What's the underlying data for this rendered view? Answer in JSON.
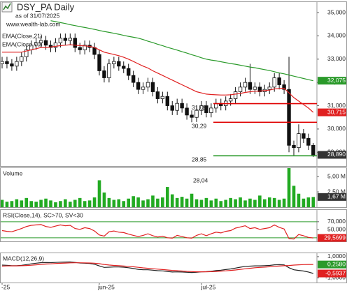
{
  "chart_data": [
    {
      "type": "candlestick",
      "title": "DSY_PA Daily",
      "subtitle": "as of 31/07/2025",
      "annotations": [
        "www.wealth-lab.com"
      ],
      "categories": [
        "-25",
        null,
        null,
        null,
        null,
        null,
        null,
        null,
        null,
        null,
        null,
        null,
        null,
        null,
        null,
        null,
        null,
        null,
        null,
        null,
        "jun-25",
        null,
        null,
        null,
        null,
        null,
        null,
        null,
        null,
        null,
        null,
        null,
        null,
        null,
        null,
        null,
        null,
        null,
        null,
        null,
        null,
        "jul-25",
        null,
        null,
        null,
        null,
        null,
        null,
        null,
        null,
        null,
        null,
        null,
        null,
        null,
        null,
        null,
        null,
        null,
        null,
        null,
        null,
        null,
        null,
        null
      ],
      "open": [
        32.8,
        32.9,
        32.8,
        32.7,
        32.9,
        33.1,
        33.4,
        33.6,
        33.7,
        33.8,
        33.6,
        33.5,
        33.7,
        33.9,
        33.8,
        33.9,
        33.5,
        33.4,
        33.6,
        33.5,
        33.2,
        32.5,
        32.2,
        32.8,
        32.9,
        32.7,
        32.6,
        32.3,
        32.0,
        31.7,
        31.8,
        32.0,
        31.6,
        31.3,
        31.4,
        31.0,
        30.8,
        31.1,
        30.9,
        30.6,
        30.5,
        30.8,
        31.0,
        30.7,
        30.9,
        31.1,
        31.0,
        31.2,
        31.3,
        31.6,
        31.8,
        32.0,
        31.7,
        31.8,
        31.6,
        31.7,
        31.8,
        32.2,
        31.9,
        31.7,
        29.3,
        29.2,
        29.8,
        29.6,
        29.3
      ],
      "high": [
        33.1,
        33.1,
        33.0,
        33.1,
        33.3,
        33.6,
        33.8,
        33.9,
        34.0,
        34.0,
        33.8,
        33.9,
        34.1,
        34.1,
        34.1,
        34.1,
        33.7,
        33.8,
        33.8,
        33.7,
        33.4,
        32.7,
        33.0,
        33.1,
        33.1,
        32.9,
        32.8,
        32.5,
        32.2,
        32.0,
        32.2,
        32.2,
        31.8,
        31.6,
        31.6,
        31.2,
        31.3,
        31.3,
        31.1,
        30.8,
        31.0,
        31.2,
        31.2,
        31.1,
        31.3,
        31.3,
        31.4,
        31.5,
        31.8,
        32.0,
        32.2,
        32.8,
        32.0,
        32.0,
        31.9,
        32.0,
        32.4,
        32.4,
        32.1,
        33.1,
        29.5,
        30.2,
        30.0,
        29.8,
        29.4
      ],
      "low": [
        32.6,
        32.6,
        32.5,
        32.5,
        32.7,
        32.9,
        33.2,
        33.4,
        33.5,
        33.4,
        33.3,
        33.3,
        33.5,
        33.6,
        33.6,
        33.3,
        33.2,
        33.2,
        33.3,
        33.0,
        32.3,
        32.0,
        32.0,
        32.6,
        32.5,
        32.4,
        32.1,
        31.8,
        31.5,
        31.5,
        31.6,
        31.4,
        31.1,
        31.1,
        30.8,
        30.6,
        30.6,
        30.7,
        30.4,
        30.29,
        30.3,
        30.6,
        30.5,
        30.5,
        30.7,
        30.8,
        30.8,
        31.0,
        31.1,
        31.4,
        31.6,
        31.5,
        31.5,
        31.4,
        31.4,
        31.5,
        31.6,
        31.7,
        31.5,
        29.0,
        28.85,
        29.0,
        29.4,
        29.1,
        28.8
      ],
      "close": [
        32.9,
        32.8,
        32.7,
        32.9,
        33.1,
        33.4,
        33.6,
        33.7,
        33.8,
        33.6,
        33.5,
        33.7,
        33.9,
        33.8,
        33.9,
        33.5,
        33.4,
        33.6,
        33.5,
        33.2,
        32.5,
        32.2,
        32.8,
        32.9,
        32.7,
        32.6,
        32.3,
        32.0,
        31.7,
        31.8,
        32.0,
        31.6,
        31.3,
        31.4,
        31.0,
        30.8,
        31.1,
        30.9,
        30.6,
        30.5,
        30.8,
        31.0,
        30.7,
        30.9,
        31.1,
        31.0,
        31.2,
        31.3,
        31.6,
        31.8,
        32.0,
        31.7,
        31.8,
        31.6,
        31.7,
        31.8,
        32.2,
        31.9,
        31.7,
        29.3,
        29.2,
        29.8,
        29.6,
        29.3,
        28.89
      ],
      "series": [
        {
          "name": "EMA(Close,21)",
          "color": "#e02020",
          "values": [
            33.3,
            33.3,
            33.3,
            33.3,
            33.3,
            33.35,
            33.4,
            33.45,
            33.5,
            33.5,
            33.52,
            33.55,
            33.58,
            33.6,
            33.62,
            33.6,
            33.58,
            33.57,
            33.55,
            33.5,
            33.4,
            33.3,
            33.25,
            33.2,
            33.15,
            33.08,
            33.0,
            32.9,
            32.8,
            32.7,
            32.62,
            32.5,
            32.4,
            32.3,
            32.2,
            32.1,
            32.0,
            31.9,
            31.8,
            31.7,
            31.6,
            31.55,
            31.5,
            31.48,
            31.47,
            31.46,
            31.46,
            31.47,
            31.5,
            31.53,
            31.57,
            31.6,
            31.62,
            31.63,
            31.65,
            31.67,
            31.72,
            31.74,
            31.75,
            31.55,
            31.35,
            31.2,
            31.05,
            30.9,
            30.715
          ]
        },
        {
          "name": "EMA(Close,70)",
          "color": "#2a9a2a",
          "values": [
            null,
            null,
            null,
            null,
            null,
            null,
            null,
            null,
            null,
            null,
            34.65,
            34.61,
            34.57,
            34.53,
            34.48,
            34.44,
            34.4,
            34.36,
            34.32,
            34.28,
            34.23,
            34.19,
            34.15,
            34.11,
            34.07,
            34.02,
            33.98,
            33.94,
            33.9,
            33.84,
            33.77,
            33.71,
            33.64,
            33.58,
            33.51,
            33.45,
            33.39,
            33.32,
            33.26,
            33.19,
            33.13,
            33.06,
            33.0,
            32.96,
            32.93,
            32.89,
            32.85,
            32.81,
            32.78,
            32.74,
            32.7,
            32.66,
            32.63,
            32.59,
            32.55,
            32.51,
            32.46,
            32.41,
            32.37,
            32.32,
            32.27,
            32.22,
            32.17,
            32.12,
            32.075
          ]
        }
      ],
      "hlines": [
        {
          "value": 31.09,
          "label": "31,09",
          "color": "#e00000"
        },
        {
          "value": 30.29,
          "label": "30,29",
          "color": "#e00000"
        },
        {
          "value": 28.85,
          "label": "28,85",
          "color": "#2a9a2a"
        }
      ],
      "last_labels": [
        {
          "value": 32.075,
          "label": "32,075",
          "color": "#2a9a2a"
        },
        {
          "value": 30.715,
          "label": "30,715",
          "color": "#e02020"
        },
        {
          "value": 28.89,
          "label": "28,890",
          "color": "#333333"
        }
      ],
      "ylim": [
        28.41,
        35.48
      ],
      "yticks": [
        {
          "value": 35,
          "label": "35,000"
        },
        {
          "value": 34,
          "label": "34,000"
        },
        {
          "value": 33,
          "label": "33,000"
        },
        {
          "value": 32,
          "label": "32,000"
        },
        {
          "value": 31,
          "label": "31,000"
        },
        {
          "value": 30,
          "label": "30,000"
        },
        {
          "value": 29,
          "label": "29,000"
        }
      ]
    },
    {
      "type": "bar",
      "title": "Volume",
      "color": "#22aa22",
      "annotations": [
        "28,04"
      ],
      "values": [
        1.2,
        0.9,
        1.0,
        1.3,
        1.1,
        1.5,
        1.0,
        0.9,
        1.2,
        1.4,
        1.1,
        0.8,
        1.0,
        1.3,
        0.9,
        1.2,
        1.5,
        1.0,
        1.1,
        1.6,
        4.4,
        2.4,
        1.5,
        1.2,
        1.3,
        1.0,
        1.4,
        1.8,
        1.6,
        1.1,
        1.3,
        1.9,
        1.4,
        1.6,
        3.3,
        2.1,
        1.5,
        1.7,
        1.4,
        2.2,
        1.3,
        1.2,
        1.5,
        1.1,
        1.4,
        1.0,
        1.2,
        1.5,
        1.3,
        1.6,
        1.1,
        1.4,
        1.2,
        1.9,
        1.3,
        1.6,
        1.5,
        1.2,
        1.4,
        6.4,
        3.5,
        2.2,
        1.4,
        1.6,
        1.67
      ],
      "last_labels": [
        {
          "value": 1.67,
          "label": "1,67 M",
          "color": "#333333"
        }
      ],
      "ylim": [
        0,
        6.5
      ],
      "yticks": [
        {
          "value": 5,
          "label": "5,00 M"
        },
        {
          "value": 2.5,
          "label": "2,50 M"
        }
      ]
    },
    {
      "type": "line",
      "title": "RSI(Close,14), SC>70, SV<30",
      "series": [
        {
          "name": "RSI",
          "color": "#e02020",
          "values": [
            48,
            46,
            45,
            49,
            53,
            58,
            61,
            62,
            63,
            58,
            56,
            59,
            62,
            60,
            61,
            53,
            51,
            55,
            53,
            47,
            37,
            34,
            45,
            47,
            44,
            43,
            39,
            36,
            33,
            36,
            40,
            35,
            32,
            34,
            30,
            29,
            36,
            33,
            30,
            29,
            36,
            40,
            35,
            40,
            44,
            42,
            46,
            48,
            54,
            57,
            60,
            53,
            55,
            51,
            53,
            55,
            62,
            56,
            52,
            28,
            27,
            38,
            35,
            31,
            29.5699
          ]
        }
      ],
      "levels": [
        70,
        30
      ],
      "level_color": "#2a9a2a",
      "last_labels": [
        {
          "value": 29.5699,
          "label": "29,5699",
          "color": "#e02020"
        }
      ],
      "ylim": [
        21,
        101
      ],
      "yticks": [
        {
          "value": 70,
          "label": "70,000"
        },
        {
          "value": 50,
          "label": "50,000"
        }
      ]
    },
    {
      "type": "line",
      "title": "MACD(12,26,9)",
      "series": [
        {
          "name": "MACD",
          "color": "#222222",
          "values": [
            0.2,
            0.18,
            0.15,
            0.15,
            0.18,
            0.25,
            0.32,
            0.38,
            0.43,
            0.44,
            0.43,
            0.45,
            0.48,
            0.49,
            0.5,
            0.45,
            0.4,
            0.38,
            0.35,
            0.28,
            0.12,
            -0.02,
            0.0,
            0.03,
            0.02,
            0.0,
            -0.05,
            -0.12,
            -0.2,
            -0.24,
            -0.24,
            -0.28,
            -0.33,
            -0.35,
            -0.4,
            -0.45,
            -0.44,
            -0.45,
            -0.48,
            -0.5,
            -0.48,
            -0.43,
            -0.42,
            -0.38,
            -0.32,
            -0.28,
            -0.22,
            -0.16,
            -0.08,
            0.0,
            0.08,
            0.1,
            0.13,
            0.13,
            0.15,
            0.17,
            0.23,
            0.24,
            0.22,
            -0.05,
            -0.24,
            -0.3,
            -0.36,
            -0.45,
            -0.5937
          ]
        },
        {
          "name": "Signal",
          "color": "#e02020",
          "values": [
            0.1,
            0.12,
            0.13,
            0.13,
            0.14,
            0.16,
            0.19,
            0.23,
            0.27,
            0.3,
            0.32,
            0.35,
            0.37,
            0.39,
            0.41,
            0.42,
            0.42,
            0.41,
            0.4,
            0.38,
            0.33,
            0.26,
            0.21,
            0.17,
            0.14,
            0.11,
            0.08,
            0.04,
            -0.01,
            -0.06,
            -0.1,
            -0.14,
            -0.18,
            -0.22,
            -0.26,
            -0.3,
            -0.33,
            -0.36,
            -0.39,
            -0.41,
            -0.43,
            -0.43,
            -0.43,
            -0.42,
            -0.4,
            -0.37,
            -0.34,
            -0.3,
            -0.26,
            -0.2,
            -0.15,
            -0.1,
            -0.05,
            -0.02,
            0.01,
            0.04,
            0.08,
            0.11,
            0.14,
            0.16,
            0.2,
            0.23,
            0.25,
            0.26,
            0.258
          ]
        }
      ],
      "last_labels": [
        {
          "value": 0.258,
          "label": "0,2580",
          "color": "#2a9a2a"
        },
        {
          "value": -0.5937,
          "label": "-0,5937",
          "color": "#e02020"
        }
      ],
      "ylim": [
        -1.45,
        1.39
      ],
      "yticks": [
        {
          "value": 1,
          "label": "1,0000"
        },
        {
          "value": -1,
          "label": "-1,0000"
        }
      ]
    }
  ]
}
